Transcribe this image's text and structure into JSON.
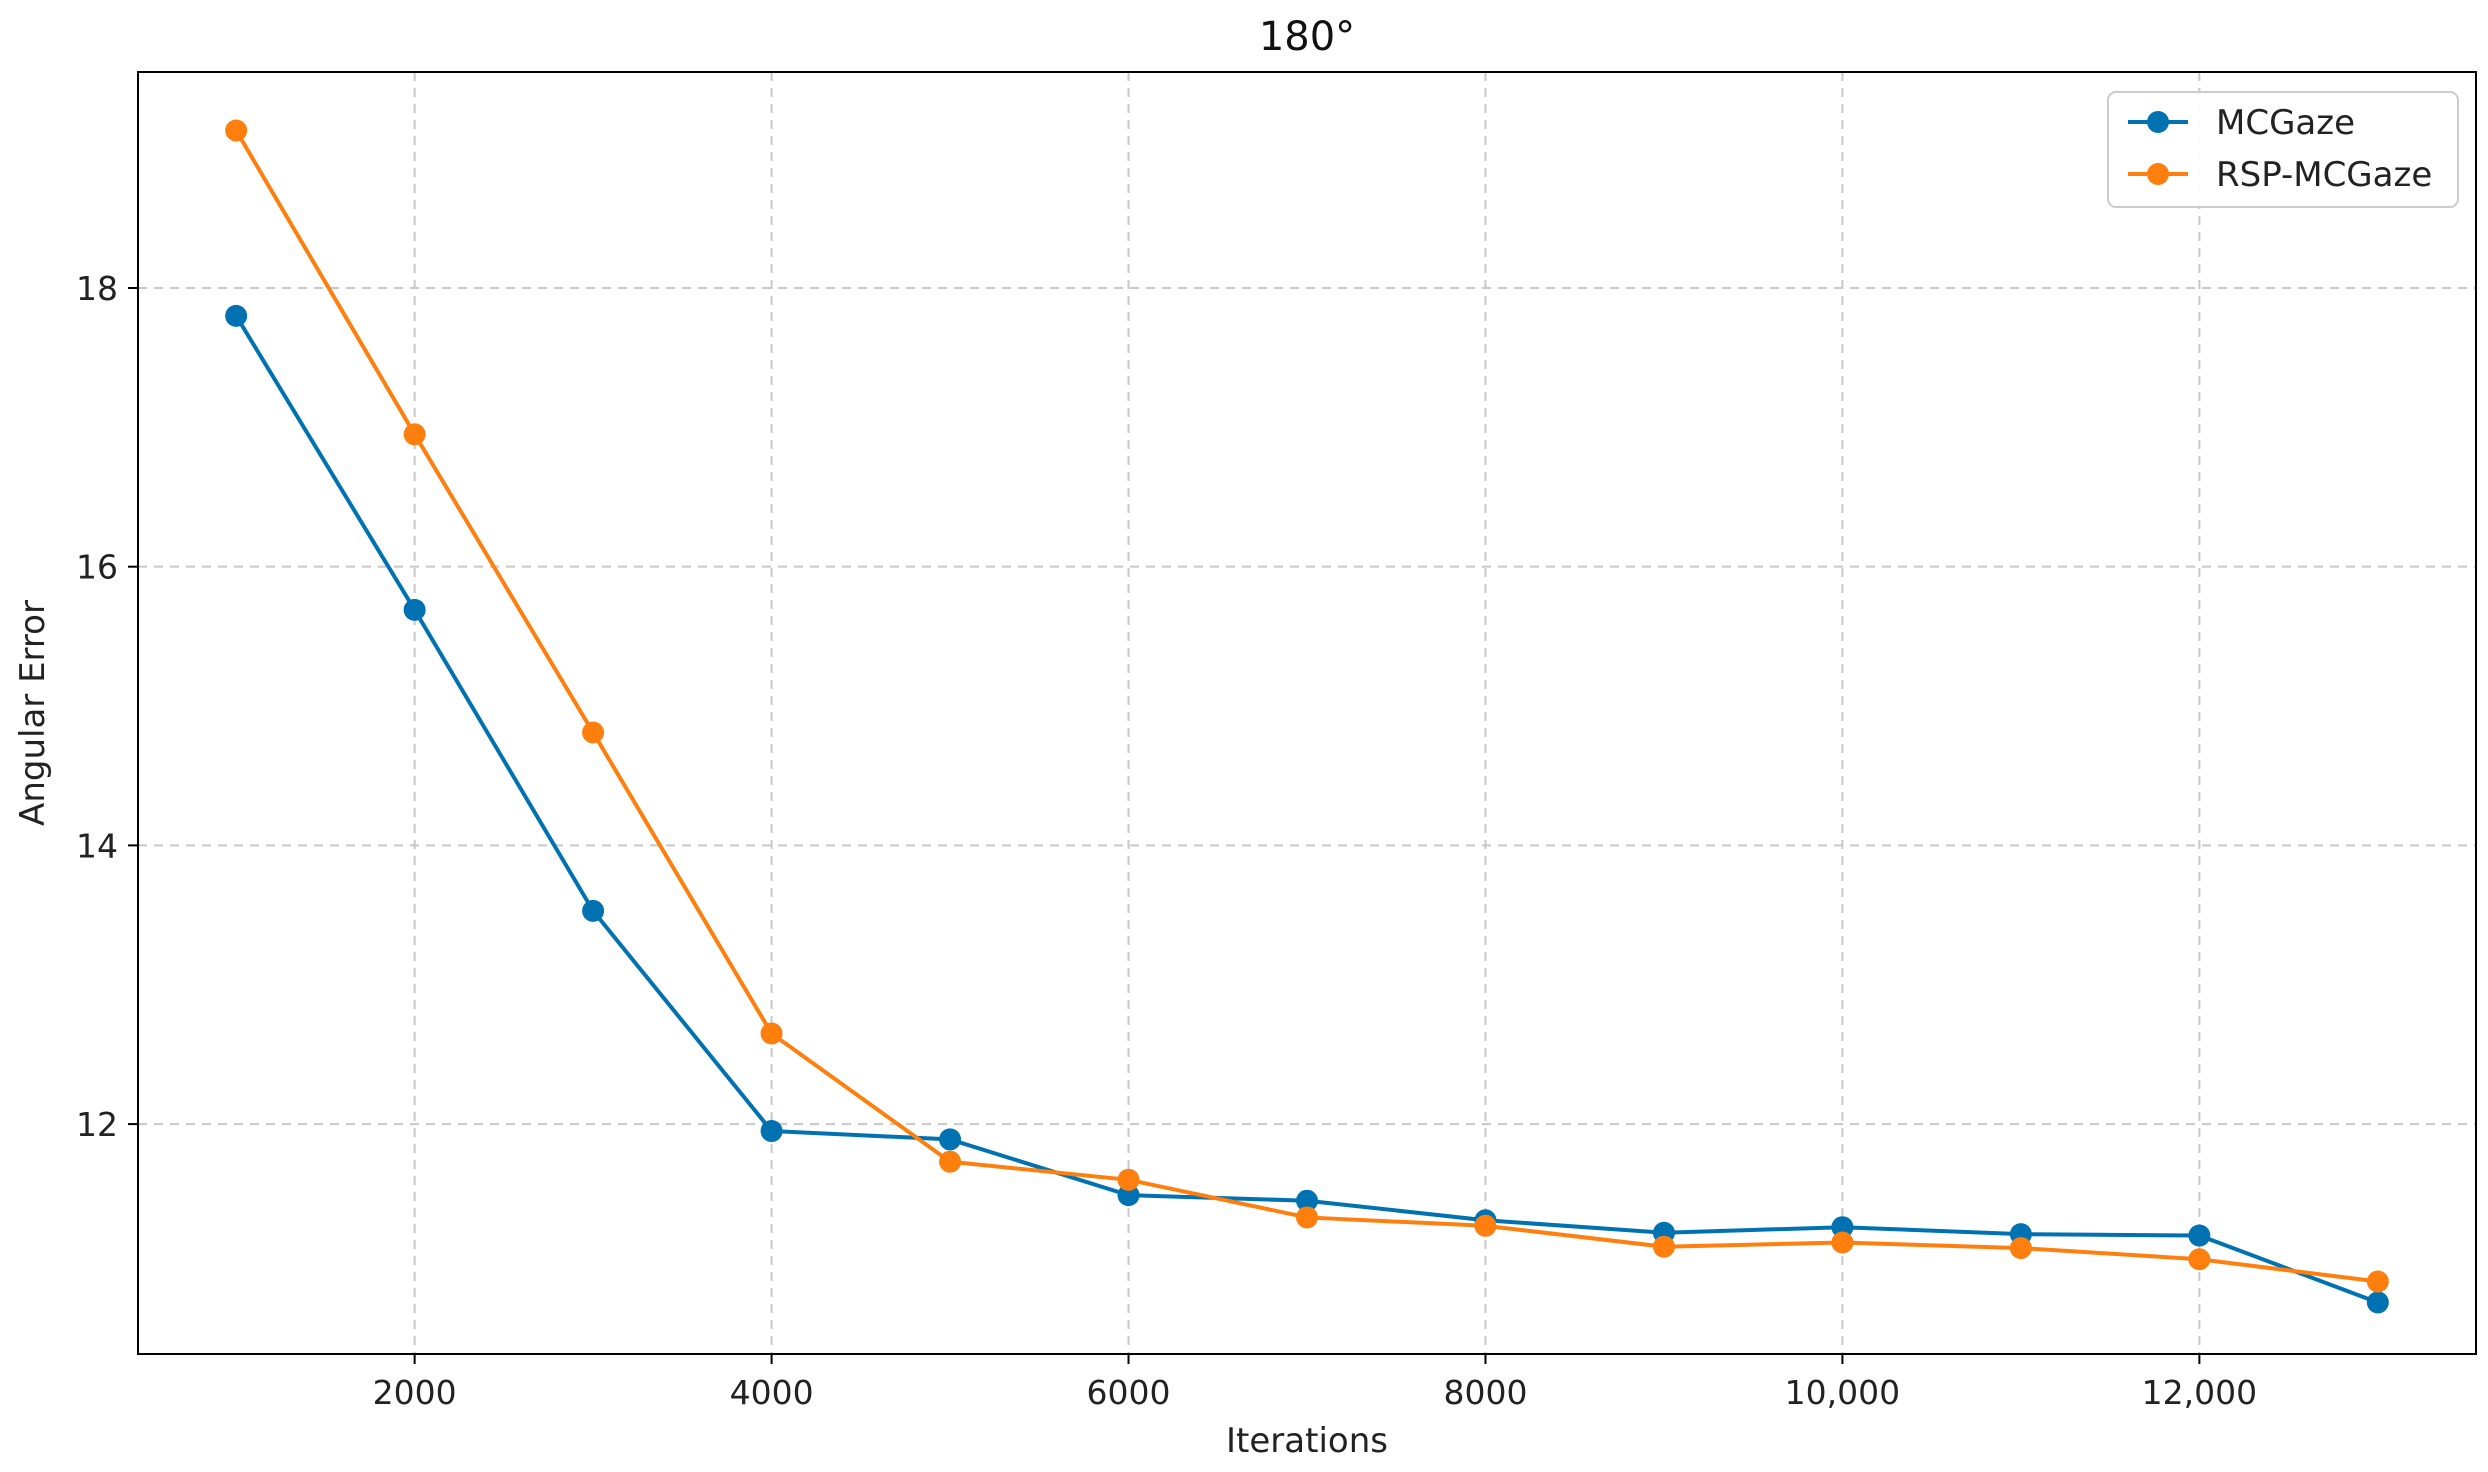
{
  "chart_data": {
    "type": "line",
    "title": "180°",
    "xlabel": "Iterations",
    "ylabel": "Angular Error",
    "xlim": [
      450,
      13550
    ],
    "ylim": [
      10.35,
      19.55
    ],
    "grid": true,
    "legend_position": "top-right",
    "x_ticks": [
      {
        "value": 2000,
        "label": "2000"
      },
      {
        "value": 4000,
        "label": "4000"
      },
      {
        "value": 6000,
        "label": "6000"
      },
      {
        "value": 8000,
        "label": "8000"
      },
      {
        "value": 10000,
        "label": "10,000"
      },
      {
        "value": 12000,
        "label": "12,000"
      }
    ],
    "y_ticks": [
      {
        "value": 12,
        "label": "12"
      },
      {
        "value": 14,
        "label": "14"
      },
      {
        "value": 16,
        "label": "16"
      },
      {
        "value": 18,
        "label": "18"
      }
    ],
    "x": [
      1000,
      2000,
      3000,
      4000,
      5000,
      6000,
      7000,
      8000,
      9000,
      10000,
      11000,
      12000,
      13000
    ],
    "series": [
      {
        "name": "MCGaze",
        "color": "#0072B2",
        "values": [
          17.8,
          15.69,
          13.53,
          11.95,
          11.89,
          11.49,
          11.45,
          11.31,
          11.22,
          11.26,
          11.21,
          11.2,
          10.72
        ]
      },
      {
        "name": "RSP-MCGaze",
        "color": "#FF7F0E",
        "values": [
          19.13,
          16.95,
          14.81,
          12.65,
          11.73,
          11.6,
          11.33,
          11.27,
          11.12,
          11.15,
          11.11,
          11.03,
          10.87
        ]
      }
    ]
  }
}
